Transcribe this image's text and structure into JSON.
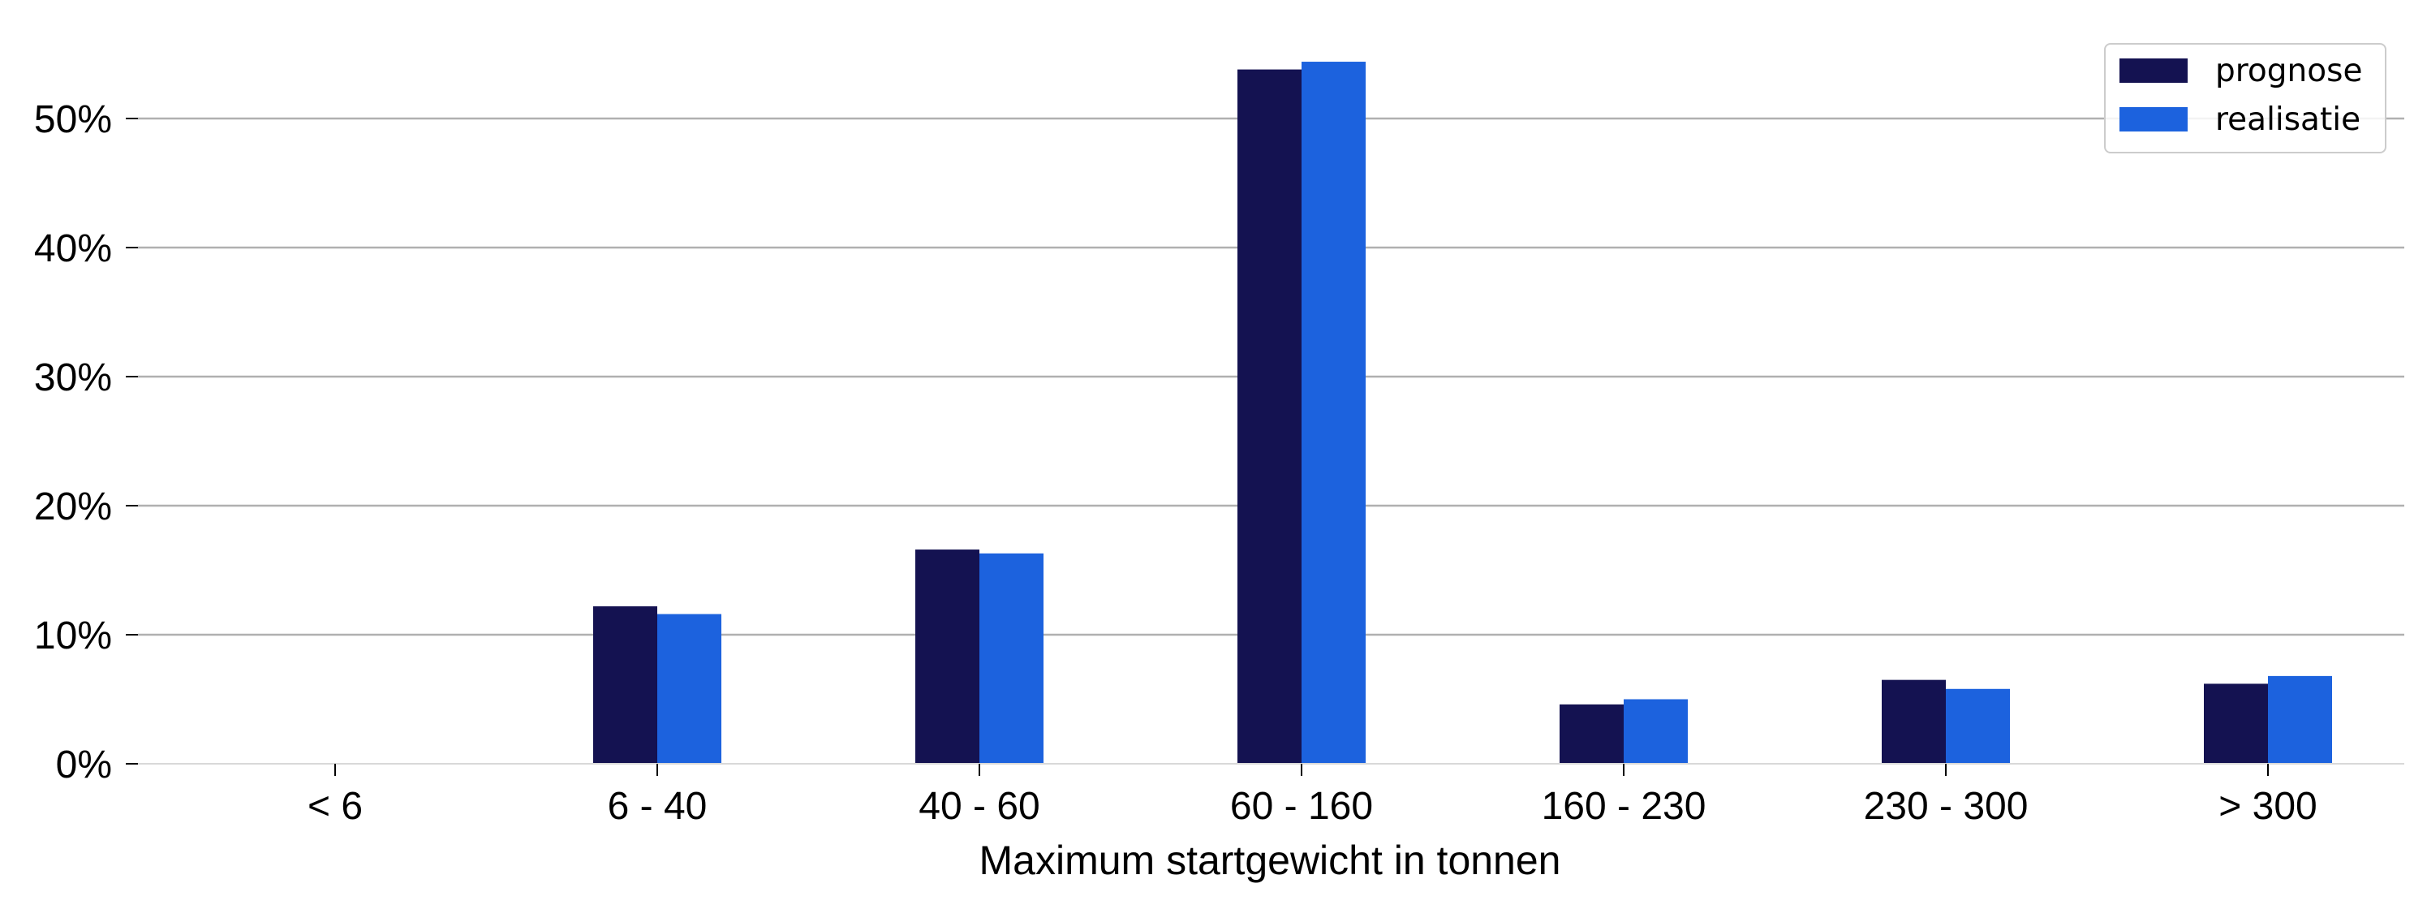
{
  "chart_data": {
    "type": "bar",
    "title": "",
    "xlabel": "Maximum startgewicht in tonnen",
    "ylabel": "",
    "categories": [
      "< 6",
      "6 - 40",
      "40 - 60",
      "60 - 160",
      "160 - 230",
      "230 - 300",
      "> 300"
    ],
    "series": [
      {
        "name": "prognose",
        "color": "#141251",
        "values": [
          0,
          12.2,
          16.6,
          53.8,
          4.6,
          6.5,
          6.2
        ]
      },
      {
        "name": "realisatie",
        "color": "#1c62de",
        "values": [
          0,
          11.6,
          16.3,
          54.4,
          5.0,
          5.8,
          6.8
        ]
      }
    ],
    "ylim": [
      0,
      56
    ],
    "yticks": [
      0,
      10,
      20,
      30,
      40,
      50
    ],
    "ytick_labels": [
      "0%",
      "10%",
      "20%",
      "30%",
      "40%",
      "50%"
    ],
    "grid": true,
    "legend_position": "top-right"
  }
}
